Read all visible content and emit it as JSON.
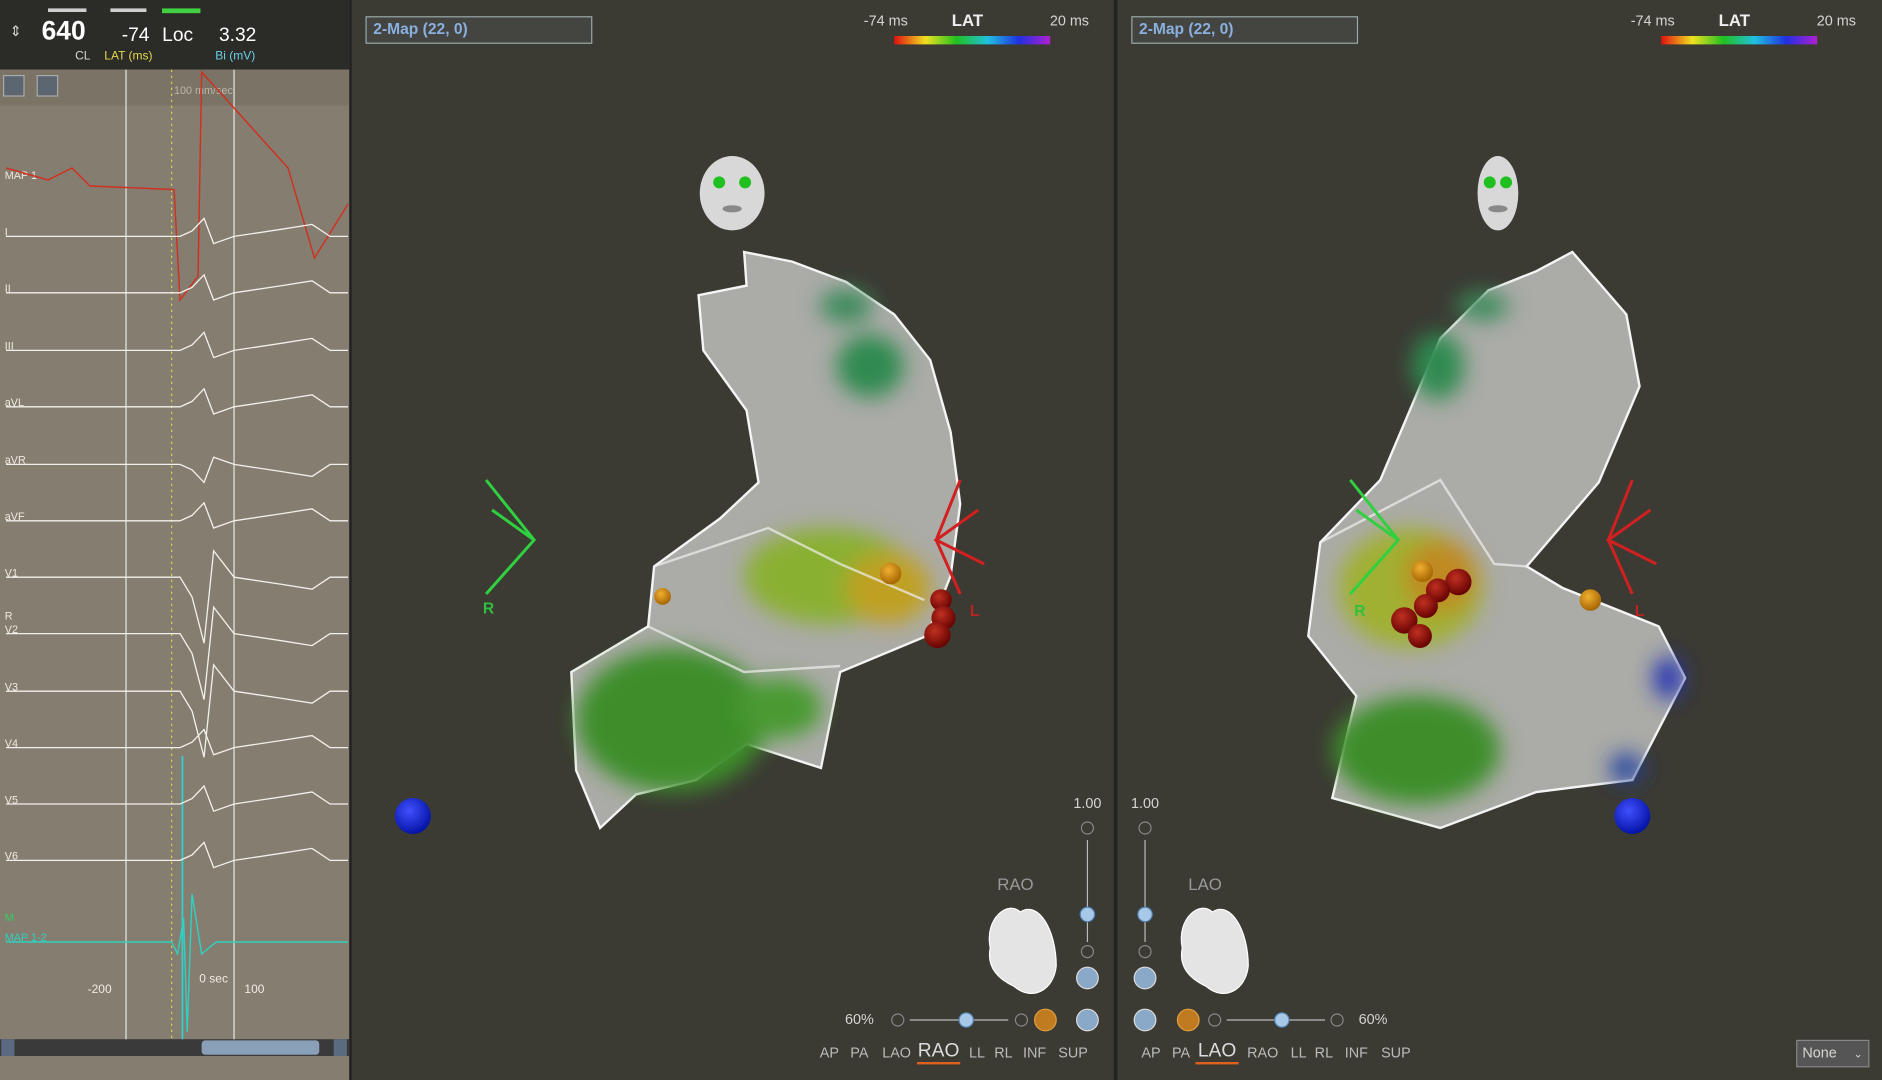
{
  "header": {
    "cycle_length": "640",
    "cycle_length_label": "CL",
    "lat": "-74",
    "lat_label": "LAT (ms)",
    "loc": "Loc",
    "bipolar": "3.32",
    "bipolar_label": "Bi (mV)"
  },
  "ecg": {
    "sweep_speed": "100 mm/sec",
    "channels": [
      "MAP 1",
      "I",
      "II",
      "III",
      "aVL",
      "aVR",
      "aVF",
      "V1",
      "V2",
      "V3",
      "V4",
      "V5",
      "V6",
      "MAP 1-2"
    ],
    "markers": [
      "R",
      "M"
    ],
    "time_labels": [
      "-200",
      "0 sec",
      "100"
    ]
  },
  "views": [
    {
      "map_select": "2-Map (22, 0)",
      "scale_min": "-74 ms",
      "scale_title": "LAT",
      "scale_max": "20 ms",
      "orientation_right": "R",
      "orientation_left": "L",
      "opacity_value": "1.00",
      "view_name": "RAO",
      "zoom": "60%",
      "view_buttons": [
        "AP",
        "PA",
        "LAO",
        "RAO",
        "LL",
        "RL",
        "INF",
        "SUP"
      ],
      "active_view": "RAO"
    },
    {
      "map_select": "2-Map (22, 0)",
      "scale_min": "-74 ms",
      "scale_title": "LAT",
      "scale_max": "20 ms",
      "orientation_right": "R",
      "orientation_left": "L",
      "opacity_value": "1.00",
      "view_name": "LAO",
      "zoom": "60%",
      "view_buttons": [
        "AP",
        "PA",
        "LAO",
        "RAO",
        "LL",
        "RL",
        "INF",
        "SUP"
      ],
      "active_view": "LAO"
    }
  ],
  "footer": {
    "overlay_select": "None"
  }
}
